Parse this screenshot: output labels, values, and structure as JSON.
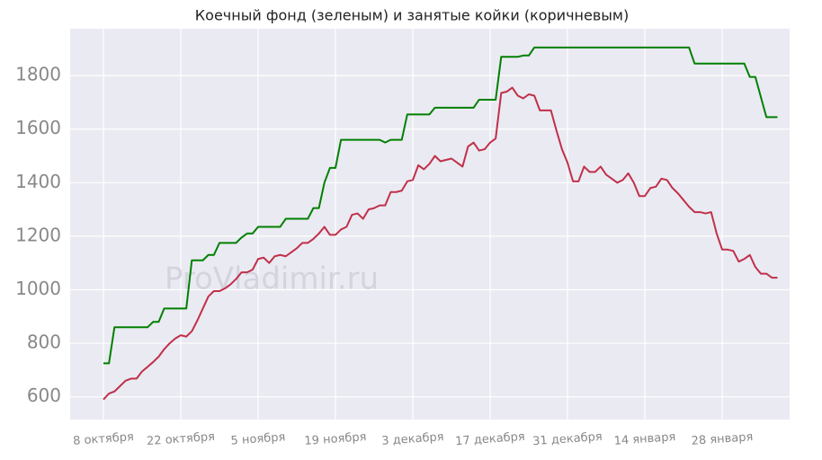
{
  "chart_data": {
    "type": "line",
    "title": "Коечный фонд (зеленым) и занятые койки (коричневым)",
    "watermark": "ProVladimir.ru",
    "categories": [
      "8 октября",
      null,
      null,
      null,
      null,
      null,
      null,
      null,
      null,
      null,
      null,
      null,
      null,
      null,
      "22 октября",
      null,
      null,
      null,
      null,
      null,
      null,
      null,
      null,
      null,
      null,
      null,
      null,
      null,
      "5 ноября",
      null,
      null,
      null,
      null,
      null,
      null,
      null,
      null,
      null,
      null,
      null,
      null,
      null,
      "19 ноября",
      null,
      null,
      null,
      null,
      null,
      null,
      null,
      null,
      null,
      null,
      null,
      null,
      null,
      "3 декабря",
      null,
      null,
      null,
      null,
      null,
      null,
      null,
      null,
      null,
      null,
      null,
      null,
      null,
      "17 декабря",
      null,
      null,
      null,
      null,
      null,
      null,
      null,
      null,
      null,
      null,
      null,
      null,
      null,
      "31 декабря",
      null,
      null,
      null,
      null,
      null,
      null,
      null,
      null,
      null,
      null,
      null,
      null,
      null,
      "14 января",
      null,
      null,
      null,
      null,
      null,
      null,
      null,
      null,
      null,
      null,
      null,
      null,
      null,
      "28 января",
      null,
      null,
      null,
      null,
      null,
      null,
      null,
      null,
      null,
      null
    ],
    "series": [
      {
        "color": "#008000",
        "values": [
          725,
          725,
          860,
          860,
          860,
          860,
          860,
          860,
          860,
          880,
          880,
          930,
          930,
          930,
          930,
          930,
          1110,
          1110,
          1110,
          1130,
          1130,
          1175,
          1175,
          1175,
          1175,
          1195,
          1210,
          1210,
          1235,
          1235,
          1235,
          1235,
          1235,
          1265,
          1265,
          1265,
          1265,
          1265,
          1305,
          1305,
          1400,
          1455,
          1455,
          1560,
          1560,
          1560,
          1560,
          1560,
          1560,
          1560,
          1560,
          1550,
          1560,
          1560,
          1560,
          1655,
          1655,
          1655,
          1655,
          1655,
          1680,
          1680,
          1680,
          1680,
          1680,
          1680,
          1680,
          1680,
          1710,
          1710,
          1710,
          1710,
          1870,
          1870,
          1870,
          1870,
          1875,
          1875,
          1905,
          1905,
          1905,
          1905,
          1905,
          1905,
          1905,
          1905,
          1905,
          1905,
          1905,
          1905,
          1905,
          1905,
          1905,
          1905,
          1905,
          1905,
          1905,
          1905,
          1905,
          1905,
          1905,
          1905,
          1905,
          1905,
          1905,
          1905,
          1905,
          1845,
          1845,
          1845,
          1845,
          1845,
          1845,
          1845,
          1845,
          1845,
          1845,
          1795,
          1795,
          1720,
          1645,
          1645,
          1645
        ]
      },
      {
        "color": "#c0304a",
        "values": [
          590,
          612,
          620,
          640,
          660,
          668,
          668,
          695,
          712,
          730,
          750,
          778,
          800,
          818,
          830,
          825,
          845,
          885,
          930,
          975,
          995,
          995,
          1005,
          1020,
          1040,
          1065,
          1065,
          1075,
          1115,
          1120,
          1100,
          1125,
          1130,
          1125,
          1140,
          1155,
          1175,
          1175,
          1190,
          1210,
          1235,
          1205,
          1205,
          1225,
          1235,
          1280,
          1285,
          1265,
          1300,
          1305,
          1315,
          1315,
          1365,
          1365,
          1370,
          1405,
          1410,
          1465,
          1450,
          1470,
          1500,
          1480,
          1485,
          1490,
          1475,
          1460,
          1535,
          1550,
          1520,
          1525,
          1550,
          1565,
          1735,
          1740,
          1755,
          1725,
          1715,
          1730,
          1725,
          1670,
          1670,
          1670,
          1595,
          1525,
          1475,
          1405,
          1405,
          1460,
          1440,
          1440,
          1460,
          1430,
          1415,
          1400,
          1410,
          1435,
          1400,
          1350,
          1350,
          1380,
          1385,
          1415,
          1410,
          1380,
          1360,
          1335,
          1310,
          1290,
          1290,
          1285,
          1290,
          1210,
          1150,
          1150,
          1145,
          1105,
          1115,
          1130,
          1085,
          1060,
          1060,
          1045,
          1045
        ]
      }
    ],
    "ylim": [
      515,
      1975
    ],
    "yticks": [
      600,
      800,
      1000,
      1200,
      1400,
      1600,
      1800
    ],
    "grid": true
  }
}
